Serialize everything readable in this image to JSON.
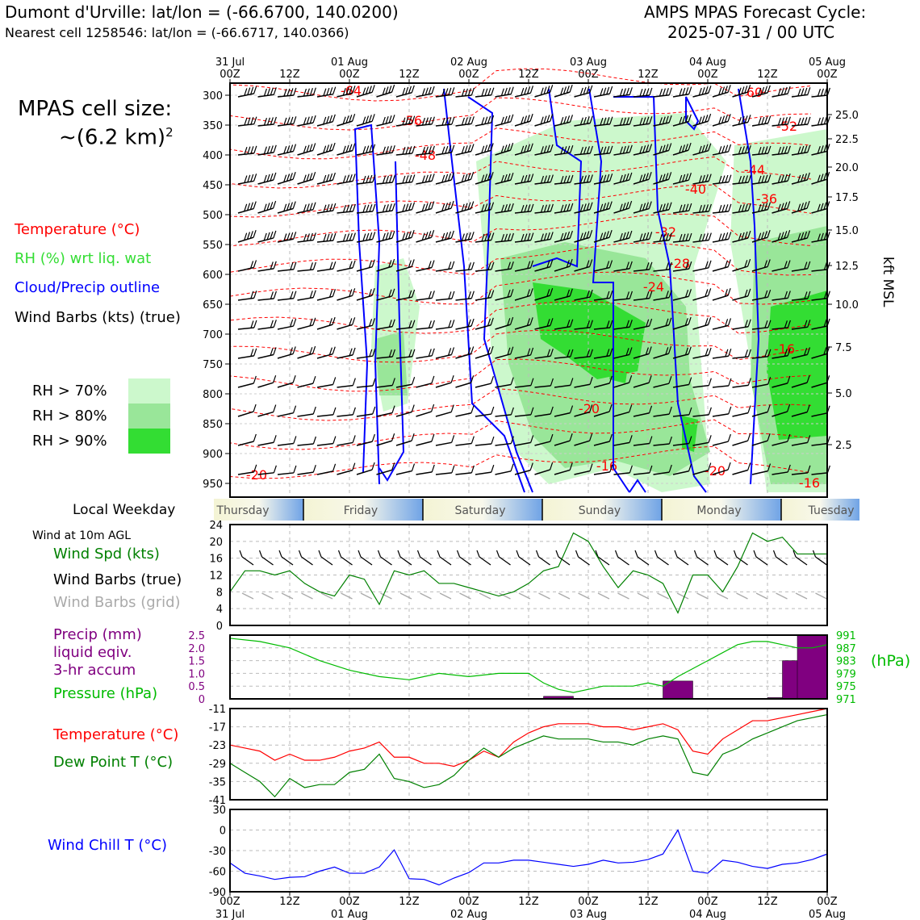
{
  "header": {
    "station": "Dumont d'Urville: lat/lon = (-66.6700, 140.0200)",
    "nearest": "Nearest cell 1258546: lat/lon = (-66.6717, 140.0366)",
    "cycle_label": "AMPS MPAS Forecast Cycle:",
    "cycle_value": "2025-07-31 / 00 UTC"
  },
  "legend": {
    "cell_size_1": "MPAS cell size:",
    "cell_size_2": "~(6.2 km)",
    "cell_size_sup": "2",
    "temperature": "Temperature (°C)",
    "rh": "RH (%) wrt liq. wat",
    "cloud": "Cloud/Precip outline",
    "barbs": "Wind Barbs (kts) (true)",
    "rh70": "RH > 70%",
    "rh80": "RH > 80%",
    "rh90": "RH > 90%",
    "weekday_title": "Local Weekday",
    "wind10m": "Wind at 10m AGL",
    "wind_spd": "Wind Spd (kts)",
    "wind_barbs_true": "Wind Barbs (true)",
    "wind_barbs_grid": "Wind Barbs (grid)",
    "precip_1": "Precip (mm)",
    "precip_2": "liquid eqiv.",
    "precip_3": "3-hr accum",
    "pressure": "Pressure (hPa)",
    "temp2": "Temperature (°C)",
    "dew": "Dew Point T (°C)",
    "chill": "Wind Chill T (°C)",
    "hpa_unit": "(hPa)",
    "kft_label": "kft MSL"
  },
  "colors": {
    "temp": "#ff0000",
    "rh_label": "#33dd33",
    "cloud": "#0000ff",
    "rh70": "#ccf8cc",
    "rh80": "#99e699",
    "rh90": "#33dd33",
    "wind_spd": "#008000",
    "precip": "#800080",
    "pressure": "#00bb00",
    "grid_barbs": "#aaaaaa",
    "chill": "#0000ff"
  },
  "chart_data": [
    {
      "type": "contour",
      "x_ticks_top": [
        [
          "31 Jul",
          "00Z"
        ],
        [
          "",
          "12Z"
        ],
        [
          "01 Aug",
          "00Z"
        ],
        [
          "",
          "12Z"
        ],
        [
          "02 Aug",
          "00Z"
        ],
        [
          "",
          "12Z"
        ],
        [
          "03 Aug",
          "00Z"
        ],
        [
          "",
          "12Z"
        ],
        [
          "04 Aug",
          "00Z"
        ],
        [
          "",
          "12Z"
        ],
        [
          "05 Aug",
          "00Z"
        ]
      ],
      "y_ticks_pressure": [
        "300",
        "350",
        "400",
        "450",
        "500",
        "550",
        "600",
        "650",
        "700",
        "750",
        "800",
        "850",
        "900",
        "950"
      ],
      "y_ticks_kft": [
        "25.0",
        "22.5",
        "20.0",
        "17.5",
        "15.0",
        "12.5",
        "10.0",
        "7.5",
        "5.0",
        "2.5"
      ],
      "temperature_contours": [
        "-64",
        "-56",
        "-48",
        "-40",
        "-32",
        "-28",
        "-24",
        "-20",
        "-16",
        "-20",
        "-60",
        "-52",
        "-44",
        "-36",
        "-16",
        "-20",
        "-16"
      ]
    },
    {
      "type": "weekday_bar",
      "days": [
        "Thursday",
        "Friday",
        "Saturday",
        "Sunday",
        "Monday",
        "Tuesday"
      ]
    },
    {
      "type": "line",
      "name": "wind",
      "ylim": [
        0,
        24
      ],
      "y_ticks": [
        "0",
        "4",
        "8",
        "12",
        "16",
        "20",
        "24"
      ],
      "x": [
        0,
        3,
        6,
        9,
        12,
        15,
        18,
        21,
        24,
        27,
        30,
        33,
        36,
        39,
        42,
        45,
        48,
        51,
        54,
        57,
        60,
        63,
        66,
        69,
        72,
        75,
        78,
        81,
        84,
        87,
        90,
        93,
        96,
        99,
        102,
        105,
        108,
        111,
        114,
        117,
        120
      ],
      "values": [
        8,
        13,
        13,
        12,
        13,
        10,
        8,
        7,
        12,
        11,
        5,
        13,
        12,
        13,
        10,
        10,
        9,
        8,
        7,
        8,
        10,
        13,
        14,
        22,
        20,
        14,
        9,
        13,
        12,
        10,
        3,
        12,
        12,
        8,
        14,
        22,
        20,
        21,
        17,
        17,
        17
      ]
    },
    {
      "type": "bar+line",
      "name": "precip_pressure",
      "precip_ylim": [
        0,
        2.5
      ],
      "precip_ticks": [
        "0",
        "0.5",
        "1.0",
        "1.5",
        "2.0",
        "2.5"
      ],
      "pressure_ticks": [
        "971",
        "975",
        "979",
        "983",
        "987",
        "991"
      ],
      "precip_bars": [
        {
          "start": 63,
          "end": 69,
          "value": 0.1
        },
        {
          "start": 87,
          "end": 93,
          "value": 0.7
        },
        {
          "start": 108,
          "end": 111,
          "value": 0.05
        },
        {
          "start": 111,
          "end": 117,
          "value": 1.5
        },
        {
          "start": 114,
          "end": 120,
          "value": 2.5
        }
      ],
      "pressure_x": [
        0,
        6,
        12,
        18,
        24,
        30,
        36,
        42,
        48,
        54,
        60,
        63,
        66,
        69,
        72,
        75,
        78,
        81,
        84,
        87,
        90,
        96,
        102,
        105,
        108,
        111,
        114,
        117,
        120
      ],
      "pressure": [
        990,
        989,
        987,
        983,
        980,
        978,
        977,
        979,
        978,
        979,
        979,
        976,
        974,
        973,
        974,
        975,
        975,
        975,
        976,
        975,
        978,
        983,
        988,
        989,
        989,
        988,
        987,
        987,
        988
      ]
    },
    {
      "type": "line",
      "name": "temperature_dewpoint",
      "ylim": [
        -41,
        -11
      ],
      "y_ticks": [
        "-11",
        "-17",
        "-23",
        "-29",
        "-35",
        "-41"
      ],
      "x": [
        0,
        3,
        6,
        9,
        12,
        15,
        18,
        21,
        24,
        27,
        30,
        33,
        36,
        39,
        42,
        45,
        48,
        51,
        54,
        57,
        60,
        63,
        66,
        69,
        72,
        75,
        78,
        81,
        84,
        87,
        90,
        93,
        96,
        99,
        102,
        105,
        108,
        111,
        114,
        117,
        120
      ],
      "temperature": [
        -23,
        -24,
        -25,
        -28,
        -26,
        -28,
        -28,
        -27,
        -25,
        -24,
        -22,
        -27,
        -27,
        -29,
        -29,
        -30,
        -28,
        -25,
        -27,
        -22,
        -19,
        -17,
        -16,
        -16,
        -16,
        -17,
        -17,
        -18,
        -17,
        -16,
        -18,
        -25,
        -26,
        -21,
        -18,
        -15,
        -15,
        -14,
        -13,
        -12,
        -11
      ],
      "dewpoint": [
        -29,
        -32,
        -35,
        -40,
        -34,
        -37,
        -36,
        -36,
        -32,
        -31,
        -26,
        -34,
        -35,
        -37,
        -36,
        -33,
        -28,
        -24,
        -27,
        -24,
        -22,
        -20,
        -21,
        -21,
        -21,
        -22,
        -22,
        -23,
        -21,
        -20,
        -21,
        -32,
        -33,
        -26,
        -24,
        -21,
        -19,
        -17,
        -15,
        -14,
        -13
      ]
    },
    {
      "type": "line",
      "name": "wind_chill",
      "ylim": [
        -90,
        30
      ],
      "y_ticks": [
        "30",
        "0",
        "-30",
        "-60",
        "-90"
      ],
      "x": [
        0,
        3,
        6,
        9,
        12,
        15,
        18,
        21,
        24,
        27,
        30,
        33,
        36,
        39,
        42,
        45,
        48,
        51,
        54,
        57,
        60,
        63,
        66,
        69,
        72,
        75,
        78,
        81,
        84,
        87,
        90,
        93,
        96,
        99,
        102,
        105,
        108,
        111,
        114,
        117,
        120
      ],
      "values": [
        -48,
        -63,
        -67,
        -72,
        -69,
        -68,
        -60,
        -54,
        -63,
        -63,
        -54,
        -29,
        -71,
        -72,
        -80,
        -70,
        -62,
        -48,
        -48,
        -44,
        -44,
        -47,
        -50,
        -53,
        -50,
        -44,
        -48,
        -47,
        -43,
        -35,
        0,
        -60,
        -63,
        -44,
        -47,
        -53,
        -56,
        -50,
        -48,
        -43,
        -35
      ],
      "x_ticks_bottom": [
        [
          "00Z",
          "31 Jul"
        ],
        [
          "12Z",
          ""
        ],
        [
          "00Z",
          "01 Aug"
        ],
        [
          "12Z",
          ""
        ],
        [
          "00Z",
          "02 Aug"
        ],
        [
          "12Z",
          ""
        ],
        [
          "00Z",
          "03 Aug"
        ],
        [
          "12Z",
          ""
        ],
        [
          "00Z",
          "04 Aug"
        ],
        [
          "12Z",
          ""
        ],
        [
          "00Z",
          "05 Aug"
        ]
      ]
    }
  ]
}
